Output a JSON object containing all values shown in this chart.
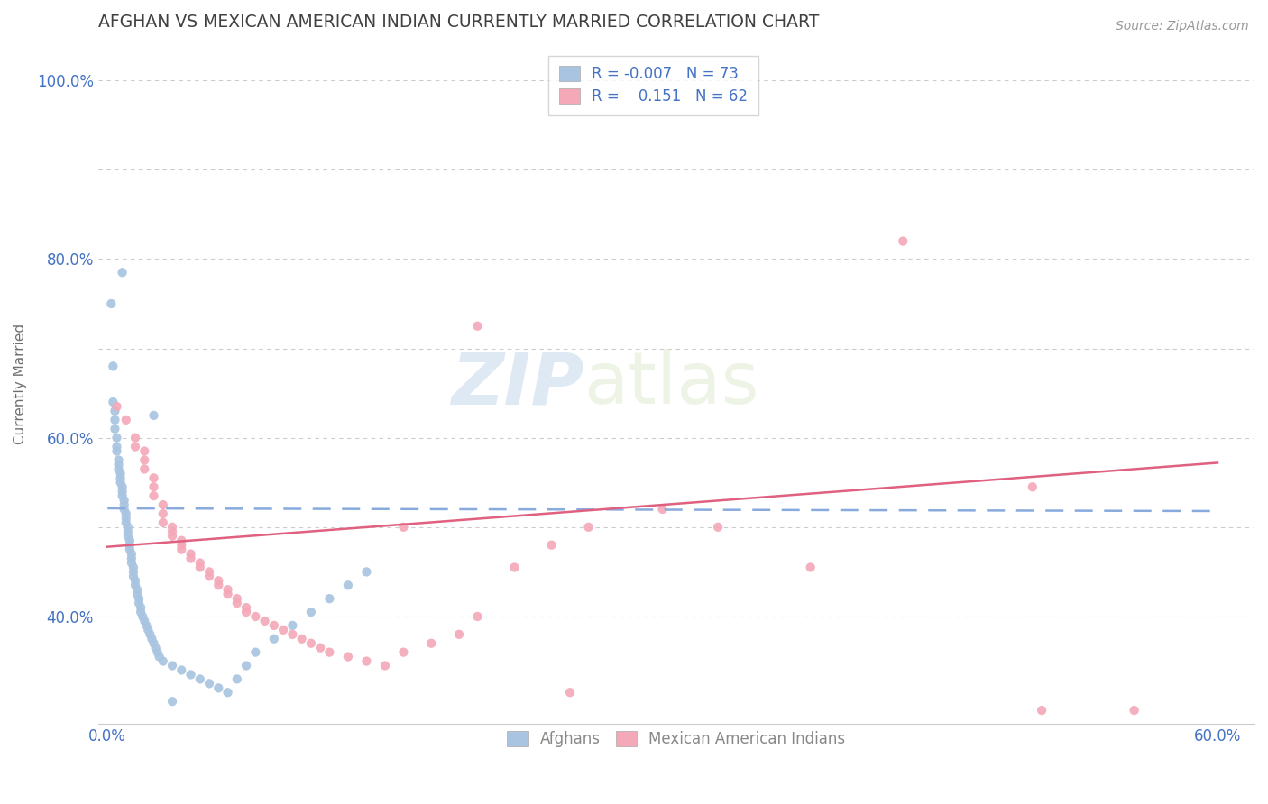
{
  "title": "AFGHAN VS MEXICAN AMERICAN INDIAN CURRENTLY MARRIED CORRELATION CHART",
  "source": "Source: ZipAtlas.com",
  "xlabel": "",
  "ylabel": "Currently Married",
  "xlim": [
    -0.005,
    0.62
  ],
  "ylim": [
    0.28,
    1.04
  ],
  "xticks": [
    0.0,
    0.1,
    0.2,
    0.3,
    0.4,
    0.5,
    0.6
  ],
  "xticklabels": [
    "0.0%",
    "",
    "",
    "",
    "",
    "",
    "60.0%"
  ],
  "yticks": [
    0.4,
    0.5,
    0.6,
    0.7,
    0.8,
    0.9,
    1.0
  ],
  "yticklabels": [
    "40.0%",
    "",
    "60.0%",
    "",
    "80.0%",
    "",
    "100.0%"
  ],
  "legend_R_blue": "-0.007",
  "legend_N_blue": "73",
  "legend_R_pink": "0.151",
  "legend_N_pink": "62",
  "blue_color": "#a8c4e0",
  "pink_color": "#f4a8b8",
  "blue_line_color": "#4472c4",
  "pink_line_color": "#e06080",
  "watermark_zip": "ZIP",
  "watermark_atlas": "atlas",
  "background_color": "#ffffff",
  "grid_color": "#cccccc",
  "title_color": "#404040",
  "axis_label_color": "#4472c4",
  "blue_trend": [
    0.521,
    0.518
  ],
  "pink_trend": [
    0.478,
    0.572
  ],
  "blue_scatter": [
    [
      0.002,
      0.75
    ],
    [
      0.003,
      0.68
    ],
    [
      0.003,
      0.64
    ],
    [
      0.004,
      0.63
    ],
    [
      0.004,
      0.62
    ],
    [
      0.004,
      0.61
    ],
    [
      0.005,
      0.6
    ],
    [
      0.005,
      0.59
    ],
    [
      0.005,
      0.585
    ],
    [
      0.006,
      0.575
    ],
    [
      0.006,
      0.57
    ],
    [
      0.006,
      0.565
    ],
    [
      0.007,
      0.56
    ],
    [
      0.007,
      0.555
    ],
    [
      0.007,
      0.55
    ],
    [
      0.008,
      0.545
    ],
    [
      0.008,
      0.54
    ],
    [
      0.008,
      0.535
    ],
    [
      0.009,
      0.53
    ],
    [
      0.009,
      0.525
    ],
    [
      0.009,
      0.52
    ],
    [
      0.01,
      0.515
    ],
    [
      0.01,
      0.51
    ],
    [
      0.01,
      0.505
    ],
    [
      0.011,
      0.5
    ],
    [
      0.011,
      0.495
    ],
    [
      0.011,
      0.49
    ],
    [
      0.012,
      0.485
    ],
    [
      0.012,
      0.48
    ],
    [
      0.012,
      0.475
    ],
    [
      0.013,
      0.47
    ],
    [
      0.013,
      0.465
    ],
    [
      0.013,
      0.46
    ],
    [
      0.014,
      0.455
    ],
    [
      0.014,
      0.45
    ],
    [
      0.014,
      0.445
    ],
    [
      0.015,
      0.44
    ],
    [
      0.015,
      0.435
    ],
    [
      0.016,
      0.43
    ],
    [
      0.016,
      0.425
    ],
    [
      0.017,
      0.42
    ],
    [
      0.017,
      0.415
    ],
    [
      0.018,
      0.41
    ],
    [
      0.018,
      0.405
    ],
    [
      0.019,
      0.4
    ],
    [
      0.02,
      0.395
    ],
    [
      0.021,
      0.39
    ],
    [
      0.022,
      0.385
    ],
    [
      0.023,
      0.38
    ],
    [
      0.024,
      0.375
    ],
    [
      0.025,
      0.37
    ],
    [
      0.026,
      0.365
    ],
    [
      0.027,
      0.36
    ],
    [
      0.028,
      0.355
    ],
    [
      0.03,
      0.35
    ],
    [
      0.035,
      0.345
    ],
    [
      0.04,
      0.34
    ],
    [
      0.045,
      0.335
    ],
    [
      0.05,
      0.33
    ],
    [
      0.055,
      0.325
    ],
    [
      0.06,
      0.32
    ],
    [
      0.065,
      0.315
    ],
    [
      0.07,
      0.33
    ],
    [
      0.075,
      0.345
    ],
    [
      0.08,
      0.36
    ],
    [
      0.09,
      0.375
    ],
    [
      0.1,
      0.39
    ],
    [
      0.11,
      0.405
    ],
    [
      0.12,
      0.42
    ],
    [
      0.13,
      0.435
    ],
    [
      0.14,
      0.45
    ],
    [
      0.035,
      0.305
    ],
    [
      0.008,
      0.785
    ],
    [
      0.025,
      0.625
    ]
  ],
  "pink_scatter": [
    [
      0.005,
      0.635
    ],
    [
      0.01,
      0.62
    ],
    [
      0.015,
      0.6
    ],
    [
      0.015,
      0.59
    ],
    [
      0.02,
      0.585
    ],
    [
      0.02,
      0.575
    ],
    [
      0.02,
      0.565
    ],
    [
      0.025,
      0.555
    ],
    [
      0.025,
      0.545
    ],
    [
      0.025,
      0.535
    ],
    [
      0.03,
      0.525
    ],
    [
      0.03,
      0.515
    ],
    [
      0.03,
      0.505
    ],
    [
      0.035,
      0.5
    ],
    [
      0.035,
      0.495
    ],
    [
      0.035,
      0.49
    ],
    [
      0.04,
      0.485
    ],
    [
      0.04,
      0.48
    ],
    [
      0.04,
      0.475
    ],
    [
      0.045,
      0.47
    ],
    [
      0.045,
      0.465
    ],
    [
      0.05,
      0.46
    ],
    [
      0.05,
      0.455
    ],
    [
      0.055,
      0.45
    ],
    [
      0.055,
      0.445
    ],
    [
      0.06,
      0.44
    ],
    [
      0.06,
      0.435
    ],
    [
      0.065,
      0.43
    ],
    [
      0.065,
      0.425
    ],
    [
      0.07,
      0.42
    ],
    [
      0.07,
      0.415
    ],
    [
      0.075,
      0.41
    ],
    [
      0.075,
      0.405
    ],
    [
      0.08,
      0.4
    ],
    [
      0.085,
      0.395
    ],
    [
      0.09,
      0.39
    ],
    [
      0.095,
      0.385
    ],
    [
      0.1,
      0.38
    ],
    [
      0.105,
      0.375
    ],
    [
      0.11,
      0.37
    ],
    [
      0.115,
      0.365
    ],
    [
      0.12,
      0.36
    ],
    [
      0.13,
      0.355
    ],
    [
      0.14,
      0.35
    ],
    [
      0.15,
      0.345
    ],
    [
      0.16,
      0.36
    ],
    [
      0.175,
      0.37
    ],
    [
      0.19,
      0.38
    ],
    [
      0.2,
      0.4
    ],
    [
      0.22,
      0.455
    ],
    [
      0.24,
      0.48
    ],
    [
      0.26,
      0.5
    ],
    [
      0.3,
      0.52
    ],
    [
      0.33,
      0.5
    ],
    [
      0.38,
      0.455
    ],
    [
      0.2,
      0.725
    ],
    [
      0.5,
      0.545
    ],
    [
      0.43,
      0.82
    ],
    [
      0.25,
      0.315
    ],
    [
      0.505,
      0.295
    ],
    [
      0.555,
      0.295
    ],
    [
      0.16,
      0.5
    ]
  ]
}
